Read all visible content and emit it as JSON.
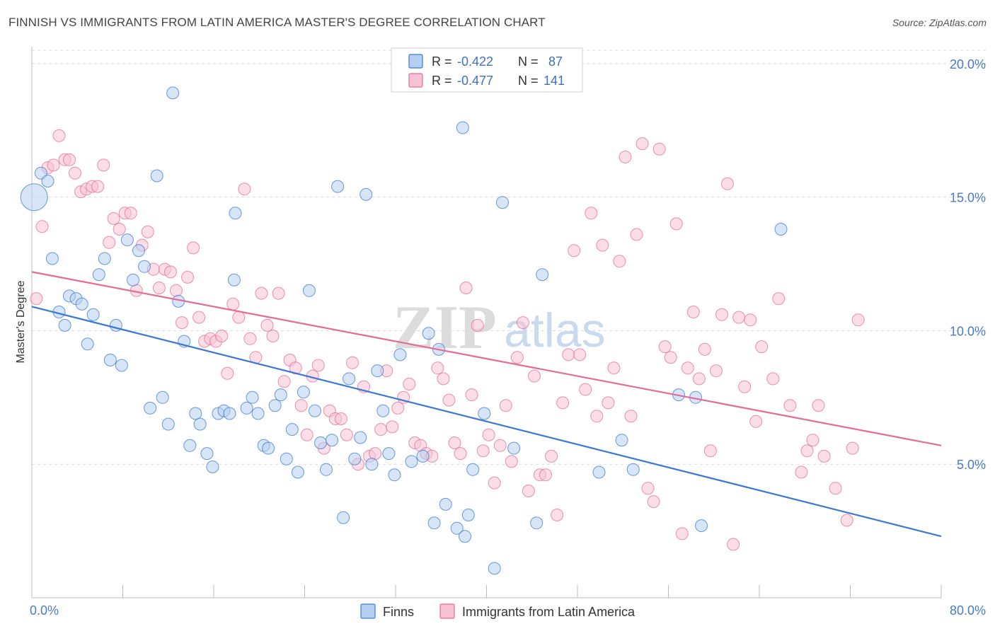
{
  "title": "FINNISH VS IMMIGRANTS FROM LATIN AMERICA MASTER'S DEGREE CORRELATION CHART",
  "source": "Source: ZipAtlas.com",
  "watermark": {
    "zip": "ZIP",
    "atlas": "atlas"
  },
  "colors": {
    "finns": "#3a78d4",
    "latin": "#e56b97",
    "finns_fill": "#b6cff0",
    "latin_fill": "#f7c3d4",
    "tick": "#4a7ac9",
    "grid": "#dcdcdc"
  },
  "legend_top": [
    {
      "r_label": "R =",
      "r_value": "-0.422",
      "n_label": "N =",
      "n_value": "87"
    },
    {
      "r_label": "R =",
      "r_value": "-0.477",
      "n_label": "N =",
      "n_value": "141"
    }
  ],
  "chart_data": {
    "type": "scatter",
    "xlabel": "",
    "ylabel": "Master's Degree",
    "xlim": [
      0,
      80
    ],
    "ylim": [
      0,
      20.5
    ],
    "x_tick_labels": [
      "0.0%",
      "80.0%"
    ],
    "y_ticks": [
      5,
      10,
      15,
      20
    ],
    "y_tick_labels": [
      "5.0%",
      "10.0%",
      "15.0%",
      "20.0%"
    ],
    "grid": "horizontal dashed",
    "legend_placement": "bottom-center",
    "series": [
      {
        "name": "Finns",
        "trend": {
          "x": [
            0,
            80
          ],
          "y": [
            10.9,
            2.3
          ]
        },
        "points": [
          [
            0.2,
            15.0
          ],
          [
            0.8,
            15.9
          ],
          [
            1.4,
            15.6
          ],
          [
            1.8,
            12.7
          ],
          [
            2.4,
            10.7
          ],
          [
            2.9,
            10.2
          ],
          [
            3.3,
            11.3
          ],
          [
            3.9,
            11.2
          ],
          [
            4.4,
            11.0
          ],
          [
            4.9,
            9.5
          ],
          [
            5.4,
            10.6
          ],
          [
            5.9,
            12.1
          ],
          [
            6.4,
            12.7
          ],
          [
            6.9,
            8.9
          ],
          [
            7.4,
            10.2
          ],
          [
            7.9,
            8.7
          ],
          [
            8.4,
            13.4
          ],
          [
            8.9,
            11.9
          ],
          [
            9.4,
            13.0
          ],
          [
            9.9,
            12.4
          ],
          [
            10.4,
            7.1
          ],
          [
            11.0,
            15.8
          ],
          [
            11.5,
            7.5
          ],
          [
            12.0,
            6.5
          ],
          [
            12.4,
            18.9
          ],
          [
            12.9,
            11.1
          ],
          [
            13.4,
            9.6
          ],
          [
            13.9,
            5.7
          ],
          [
            14.4,
            6.9
          ],
          [
            14.8,
            6.5
          ],
          [
            15.4,
            5.4
          ],
          [
            15.9,
            4.9
          ],
          [
            16.4,
            6.9
          ],
          [
            16.9,
            7.0
          ],
          [
            17.4,
            6.9
          ],
          [
            17.9,
            14.4
          ],
          [
            17.8,
            11.9
          ],
          [
            18.9,
            7.1
          ],
          [
            19.4,
            7.5
          ],
          [
            19.9,
            6.9
          ],
          [
            20.4,
            5.7
          ],
          [
            20.8,
            5.6
          ],
          [
            21.4,
            7.2
          ],
          [
            21.9,
            7.6
          ],
          [
            22.4,
            5.2
          ],
          [
            22.9,
            6.3
          ],
          [
            23.4,
            4.7
          ],
          [
            23.9,
            7.7
          ],
          [
            24.4,
            11.5
          ],
          [
            24.9,
            7.0
          ],
          [
            25.4,
            5.8
          ],
          [
            25.9,
            4.8
          ],
          [
            26.4,
            5.9
          ],
          [
            26.9,
            15.4
          ],
          [
            27.4,
            3.0
          ],
          [
            27.9,
            8.2
          ],
          [
            28.4,
            5.2
          ],
          [
            28.9,
            6.0
          ],
          [
            29.4,
            15.1
          ],
          [
            29.9,
            5.0
          ],
          [
            30.4,
            8.5
          ],
          [
            30.9,
            7.0
          ],
          [
            31.4,
            5.4
          ],
          [
            31.9,
            4.6
          ],
          [
            32.4,
            9.1
          ],
          [
            33.4,
            5.1
          ],
          [
            34.4,
            5.3
          ],
          [
            34.9,
            9.9
          ],
          [
            35.4,
            2.8
          ],
          [
            35.8,
            9.3
          ],
          [
            36.4,
            3.5
          ],
          [
            37.4,
            2.6
          ],
          [
            37.9,
            17.6
          ],
          [
            38.1,
            2.3
          ],
          [
            38.4,
            3.1
          ],
          [
            38.8,
            4.8
          ],
          [
            39.8,
            6.9
          ],
          [
            40.7,
            1.1
          ],
          [
            41.4,
            14.8
          ],
          [
            42.4,
            5.6
          ],
          [
            44.4,
            2.8
          ],
          [
            44.9,
            12.1
          ],
          [
            49.9,
            4.7
          ],
          [
            51.9,
            5.9
          ],
          [
            52.9,
            4.8
          ],
          [
            56.9,
            7.6
          ],
          [
            58.4,
            7.5
          ],
          [
            58.9,
            2.7
          ],
          [
            65.9,
            13.8
          ]
        ]
      },
      {
        "name": "Immigrants from Latin America",
        "trend": {
          "x": [
            0,
            80
          ],
          "y": [
            12.2,
            5.7
          ]
        },
        "points": [
          [
            0.4,
            11.2
          ],
          [
            0.9,
            13.9
          ],
          [
            1.4,
            16.1
          ],
          [
            1.9,
            16.2
          ],
          [
            2.4,
            17.3
          ],
          [
            2.9,
            16.4
          ],
          [
            3.3,
            16.4
          ],
          [
            3.8,
            15.9
          ],
          [
            4.3,
            15.2
          ],
          [
            4.8,
            15.3
          ],
          [
            5.3,
            15.4
          ],
          [
            5.8,
            15.4
          ],
          [
            6.3,
            16.2
          ],
          [
            6.8,
            13.3
          ],
          [
            7.2,
            14.2
          ],
          [
            7.7,
            13.8
          ],
          [
            8.2,
            14.4
          ],
          [
            8.7,
            14.4
          ],
          [
            9.2,
            11.5
          ],
          [
            9.7,
            13.2
          ],
          [
            10.2,
            13.7
          ],
          [
            10.7,
            12.3
          ],
          [
            11.2,
            11.6
          ],
          [
            11.7,
            12.3
          ],
          [
            12.2,
            12.2
          ],
          [
            12.7,
            11.5
          ],
          [
            13.2,
            10.3
          ],
          [
            13.7,
            12.0
          ],
          [
            14.2,
            13.1
          ],
          [
            14.7,
            10.5
          ],
          [
            15.2,
            9.6
          ],
          [
            15.7,
            9.7
          ],
          [
            16.2,
            9.6
          ],
          [
            16.7,
            9.8
          ],
          [
            17.2,
            8.4
          ],
          [
            17.7,
            11.0
          ],
          [
            18.2,
            10.5
          ],
          [
            18.7,
            15.3
          ],
          [
            19.2,
            9.7
          ],
          [
            19.7,
            9.0
          ],
          [
            20.2,
            11.4
          ],
          [
            20.7,
            10.2
          ],
          [
            21.2,
            9.8
          ],
          [
            21.7,
            11.4
          ],
          [
            22.2,
            8.1
          ],
          [
            22.7,
            8.9
          ],
          [
            23.2,
            8.6
          ],
          [
            23.7,
            7.2
          ],
          [
            24.2,
            6.1
          ],
          [
            24.7,
            8.3
          ],
          [
            25.2,
            8.7
          ],
          [
            25.7,
            5.6
          ],
          [
            26.2,
            7.0
          ],
          [
            26.7,
            6.7
          ],
          [
            27.2,
            6.7
          ],
          [
            27.7,
            6.1
          ],
          [
            28.2,
            8.8
          ],
          [
            28.7,
            5.0
          ],
          [
            29.2,
            7.9
          ],
          [
            29.7,
            5.3
          ],
          [
            30.2,
            5.4
          ],
          [
            30.7,
            6.3
          ],
          [
            31.2,
            8.5
          ],
          [
            31.7,
            6.4
          ],
          [
            32.2,
            7.1
          ],
          [
            32.7,
            7.5
          ],
          [
            33.2,
            8.0
          ],
          [
            33.7,
            5.8
          ],
          [
            34.2,
            5.7
          ],
          [
            34.7,
            5.4
          ],
          [
            35.2,
            5.3
          ],
          [
            35.7,
            8.6
          ],
          [
            36.2,
            8.2
          ],
          [
            36.7,
            7.4
          ],
          [
            37.2,
            5.8
          ],
          [
            37.7,
            5.4
          ],
          [
            38.2,
            11.6
          ],
          [
            38.7,
            7.6
          ],
          [
            39.2,
            10.2
          ],
          [
            39.7,
            5.5
          ],
          [
            40.2,
            6.1
          ],
          [
            40.7,
            4.3
          ],
          [
            41.2,
            5.7
          ],
          [
            41.7,
            7.2
          ],
          [
            42.2,
            5.1
          ],
          [
            42.7,
            9.0
          ],
          [
            43.2,
            10.3
          ],
          [
            43.7,
            4.0
          ],
          [
            44.2,
            8.3
          ],
          [
            44.7,
            4.6
          ],
          [
            45.2,
            4.6
          ],
          [
            45.7,
            5.3
          ],
          [
            46.2,
            3.1
          ],
          [
            46.7,
            7.3
          ],
          [
            47.2,
            9.1
          ],
          [
            47.7,
            13.0
          ],
          [
            48.2,
            9.1
          ],
          [
            48.7,
            7.8
          ],
          [
            49.2,
            14.4
          ],
          [
            49.7,
            6.8
          ],
          [
            50.2,
            13.2
          ],
          [
            50.7,
            7.3
          ],
          [
            51.2,
            8.6
          ],
          [
            51.7,
            12.6
          ],
          [
            52.2,
            16.5
          ],
          [
            52.7,
            6.8
          ],
          [
            53.2,
            13.6
          ],
          [
            53.7,
            17.0
          ],
          [
            54.2,
            4.1
          ],
          [
            54.7,
            3.6
          ],
          [
            55.2,
            16.8
          ],
          [
            55.7,
            9.4
          ],
          [
            56.2,
            9.0
          ],
          [
            56.7,
            14.0
          ],
          [
            57.2,
            2.4
          ],
          [
            57.7,
            8.6
          ],
          [
            58.2,
            10.7
          ],
          [
            58.7,
            8.2
          ],
          [
            59.2,
            9.3
          ],
          [
            59.7,
            5.5
          ],
          [
            60.2,
            8.5
          ],
          [
            60.7,
            10.6
          ],
          [
            61.2,
            15.5
          ],
          [
            61.7,
            2.0
          ],
          [
            62.2,
            10.5
          ],
          [
            62.7,
            7.9
          ],
          [
            63.2,
            10.4
          ],
          [
            63.7,
            6.6
          ],
          [
            64.2,
            9.4
          ],
          [
            65.2,
            8.2
          ],
          [
            65.7,
            11.2
          ],
          [
            66.7,
            7.2
          ],
          [
            67.7,
            4.7
          ],
          [
            68.2,
            5.5
          ],
          [
            68.7,
            5.9
          ],
          [
            69.2,
            7.2
          ],
          [
            69.7,
            5.3
          ],
          [
            70.7,
            4.1
          ],
          [
            71.7,
            2.9
          ],
          [
            72.2,
            5.6
          ],
          [
            72.7,
            10.4
          ]
        ]
      }
    ]
  }
}
